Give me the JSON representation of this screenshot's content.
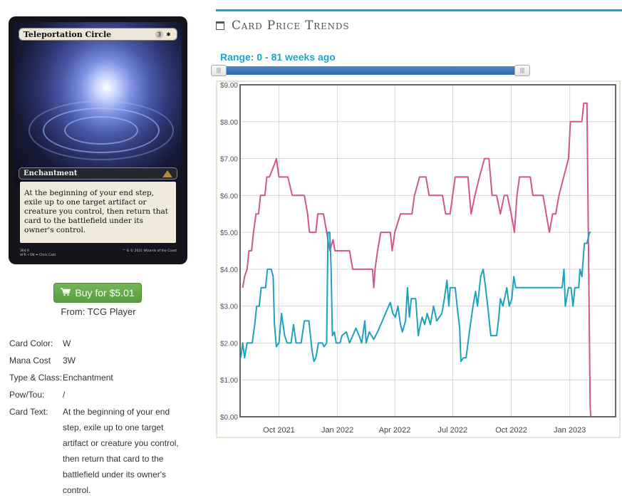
{
  "card": {
    "name": "Teleportation Circle",
    "mana_cost": "3W",
    "type_line": "Enchantment",
    "rules_text": "At the beginning of your end step, exile up to one target artifact or creature you control, then return that card to the battlefield under its owner's control.",
    "collector_left": "364 R\nAFR • EN ✒ Chris Cold",
    "footer_right": "™ & © 2021 Wizards of the Coast"
  },
  "buy": {
    "label": "Buy for $5.01",
    "from": "From: TCG Player",
    "icon": "shopping-cart-icon",
    "color": "#5fa544"
  },
  "details": [
    {
      "label": "Card Color:",
      "value": "W"
    },
    {
      "label": "Mana Cost",
      "value": "3W"
    },
    {
      "label": "Type & Class:",
      "value": "Enchantment"
    },
    {
      "label": "Pow/Tou:",
      "value": "/"
    },
    {
      "label": "Card Text:",
      "value": "At the beginning of your end step, exile up to one target artifact or creature you control, then return that card to the battlefield under its owner's control."
    }
  ],
  "section": {
    "title": "Card Price Trends",
    "icon": "calendar-icon",
    "accent": "#1aa3c4"
  },
  "range": {
    "label": "Range: 0 - 81 weeks ago",
    "min_weeks": 0,
    "max_weeks": 81
  },
  "chart_data": {
    "type": "line",
    "title": "",
    "xlabel": "",
    "ylabel": "",
    "ylim": [
      0,
      9
    ],
    "xlim": [
      "2021-08-01",
      "2023-03-14"
    ],
    "yticks": [
      "$0.00",
      "$1.00",
      "$2.00",
      "$3.00",
      "$4.00",
      "$5.00",
      "$6.00",
      "$7.00",
      "$8.00",
      "$9.00"
    ],
    "xticks": [
      {
        "label": "Oct 2021",
        "date": "2021-10-01"
      },
      {
        "label": "Jan 2022",
        "date": "2022-01-01"
      },
      {
        "label": "Apr 2022",
        "date": "2022-04-01"
      },
      {
        "label": "Jul 2022",
        "date": "2022-07-01"
      },
      {
        "label": "Oct 2022",
        "date": "2022-10-01"
      },
      {
        "label": "Jan 2023",
        "date": "2023-01-01"
      }
    ],
    "grid": true,
    "series": [
      {
        "color": "#d2558e",
        "points": [
          [
            "2021-08-05",
            3.5
          ],
          [
            "2021-08-08",
            3.8
          ],
          [
            "2021-08-12",
            4.0
          ],
          [
            "2021-08-15",
            4.5
          ],
          [
            "2021-08-19",
            4.5
          ],
          [
            "2021-08-22",
            5.0
          ],
          [
            "2021-08-26",
            5.5
          ],
          [
            "2021-08-30",
            5.5
          ],
          [
            "2021-09-02",
            6.0
          ],
          [
            "2021-09-09",
            6.0
          ],
          [
            "2021-09-12",
            6.5
          ],
          [
            "2021-09-16",
            6.5
          ],
          [
            "2021-09-23",
            6.8
          ],
          [
            "2021-09-27",
            7.0
          ],
          [
            "2021-10-01",
            6.5
          ],
          [
            "2021-10-15",
            6.5
          ],
          [
            "2021-10-22",
            6.0
          ],
          [
            "2021-11-10",
            6.0
          ],
          [
            "2021-11-15",
            5.5
          ],
          [
            "2021-11-18",
            5.0
          ],
          [
            "2021-11-28",
            5.0
          ],
          [
            "2021-12-01",
            5.5
          ],
          [
            "2021-12-10",
            5.5
          ],
          [
            "2021-12-15",
            5.0
          ],
          [
            "2021-12-20",
            4.5
          ],
          [
            "2021-12-25",
            4.8
          ],
          [
            "2021-12-28",
            4.5
          ],
          [
            "2022-01-20",
            4.5
          ],
          [
            "2022-01-25",
            4.0
          ],
          [
            "2022-02-25",
            4.0
          ],
          [
            "2022-02-27",
            3.5
          ],
          [
            "2022-03-01",
            4.0
          ],
          [
            "2022-03-05",
            4.5
          ],
          [
            "2022-03-10",
            5.0
          ],
          [
            "2022-03-25",
            5.0
          ],
          [
            "2022-03-28",
            4.5
          ],
          [
            "2022-04-01",
            5.0
          ],
          [
            "2022-04-10",
            5.5
          ],
          [
            "2022-04-28",
            5.5
          ],
          [
            "2022-05-02",
            6.0
          ],
          [
            "2022-05-10",
            6.5
          ],
          [
            "2022-05-20",
            6.5
          ],
          [
            "2022-05-25",
            6.0
          ],
          [
            "2022-06-05",
            6.0
          ],
          [
            "2022-06-15",
            6.0
          ],
          [
            "2022-06-20",
            5.5
          ],
          [
            "2022-06-27",
            5.5
          ],
          [
            "2022-07-01",
            6.0
          ],
          [
            "2022-07-05",
            6.5
          ],
          [
            "2022-07-25",
            6.5
          ],
          [
            "2022-07-30",
            5.5
          ],
          [
            "2022-08-05",
            6.0
          ],
          [
            "2022-08-12",
            6.5
          ],
          [
            "2022-08-20",
            7.0
          ],
          [
            "2022-08-27",
            7.0
          ],
          [
            "2022-09-01",
            6.0
          ],
          [
            "2022-09-08",
            6.0
          ],
          [
            "2022-09-14",
            5.5
          ],
          [
            "2022-09-20",
            6.0
          ],
          [
            "2022-09-25",
            6.0
          ],
          [
            "2022-10-01",
            5.5
          ],
          [
            "2022-10-06",
            5.0
          ],
          [
            "2022-10-10",
            6.0
          ],
          [
            "2022-10-14",
            6.5
          ],
          [
            "2022-10-31",
            6.5
          ],
          [
            "2022-11-04",
            6.0
          ],
          [
            "2022-11-20",
            6.0
          ],
          [
            "2022-11-25",
            5.5
          ],
          [
            "2022-11-30",
            5.0
          ],
          [
            "2022-12-05",
            5.5
          ],
          [
            "2022-12-10",
            5.5
          ],
          [
            "2022-12-15",
            6.0
          ],
          [
            "2022-12-30",
            7.0
          ],
          [
            "2023-01-02",
            8.0
          ],
          [
            "2023-01-20",
            8.0
          ],
          [
            "2023-01-23",
            8.5
          ],
          [
            "2023-01-28",
            8.5
          ],
          [
            "2023-02-02",
            0.3
          ],
          [
            "2023-02-03",
            0.0
          ]
        ]
      },
      {
        "color": "#1ea0bf",
        "points": [
          [
            "2021-08-02",
            1.6
          ],
          [
            "2021-08-05",
            2.0
          ],
          [
            "2021-08-08",
            1.6
          ],
          [
            "2021-08-12",
            2.0
          ],
          [
            "2021-08-20",
            2.0
          ],
          [
            "2021-08-24",
            2.5
          ],
          [
            "2021-08-27",
            3.0
          ],
          [
            "2021-08-31",
            3.0
          ],
          [
            "2021-09-03",
            3.5
          ],
          [
            "2021-09-10",
            3.5
          ],
          [
            "2021-09-13",
            4.0
          ],
          [
            "2021-09-19",
            4.0
          ],
          [
            "2021-09-22",
            3.8
          ],
          [
            "2021-09-24",
            2.5
          ],
          [
            "2021-09-27",
            1.9
          ],
          [
            "2021-10-01",
            2.0
          ],
          [
            "2021-10-05",
            2.8
          ],
          [
            "2021-10-10",
            2.2
          ],
          [
            "2021-10-14",
            2.0
          ],
          [
            "2021-10-20",
            2.0
          ],
          [
            "2021-10-24",
            2.5
          ],
          [
            "2021-10-28",
            2.0
          ],
          [
            "2021-11-05",
            2.0
          ],
          [
            "2021-11-10",
            2.6
          ],
          [
            "2021-11-17",
            2.6
          ],
          [
            "2021-11-22",
            1.8
          ],
          [
            "2021-11-25",
            1.5
          ],
          [
            "2021-11-28",
            1.6
          ],
          [
            "2021-12-02",
            2.0
          ],
          [
            "2021-12-08",
            2.0
          ],
          [
            "2021-12-11",
            1.9
          ],
          [
            "2021-12-15",
            2.0
          ],
          [
            "2021-12-17",
            5.0
          ],
          [
            "2021-12-20",
            5.0
          ],
          [
            "2021-12-22",
            4.0
          ],
          [
            "2021-12-24",
            2.2
          ],
          [
            "2021-12-27",
            2.3
          ],
          [
            "2021-12-30",
            2.0
          ],
          [
            "2022-01-05",
            2.0
          ],
          [
            "2022-01-08",
            2.2
          ],
          [
            "2022-01-15",
            2.3
          ],
          [
            "2022-01-20",
            2.0
          ],
          [
            "2022-01-25",
            2.2
          ],
          [
            "2022-01-30",
            2.4
          ],
          [
            "2022-02-04",
            2.2
          ],
          [
            "2022-02-08",
            2.0
          ],
          [
            "2022-02-13",
            2.6
          ],
          [
            "2022-02-15",
            2.0
          ],
          [
            "2022-02-20",
            2.3
          ],
          [
            "2022-02-27",
            2.1
          ],
          [
            "2022-03-05",
            2.3
          ],
          [
            "2022-03-10",
            2.5
          ],
          [
            "2022-03-15",
            2.7
          ],
          [
            "2022-03-20",
            2.9
          ],
          [
            "2022-03-25",
            3.1
          ],
          [
            "2022-03-29",
            2.8
          ],
          [
            "2022-04-02",
            2.7
          ],
          [
            "2022-04-06",
            3.0
          ],
          [
            "2022-04-10",
            2.5
          ],
          [
            "2022-04-13",
            2.3
          ],
          [
            "2022-04-18",
            2.6
          ],
          [
            "2022-04-21",
            3.5
          ],
          [
            "2022-04-24",
            2.7
          ],
          [
            "2022-04-27",
            3.2
          ],
          [
            "2022-05-04",
            3.2
          ],
          [
            "2022-05-08",
            2.2
          ],
          [
            "2022-05-10",
            2.4
          ],
          [
            "2022-05-14",
            2.7
          ],
          [
            "2022-05-18",
            2.5
          ],
          [
            "2022-05-22",
            2.8
          ],
          [
            "2022-05-27",
            2.5
          ],
          [
            "2022-06-01",
            3.0
          ],
          [
            "2022-06-06",
            2.6
          ],
          [
            "2022-06-14",
            2.8
          ],
          [
            "2022-06-18",
            3.2
          ],
          [
            "2022-06-22",
            3.7
          ],
          [
            "2022-06-25",
            3.0
          ],
          [
            "2022-06-27",
            3.5
          ],
          [
            "2022-07-05",
            3.5
          ],
          [
            "2022-07-08",
            3.0
          ],
          [
            "2022-07-12",
            2.4
          ],
          [
            "2022-07-14",
            1.5
          ],
          [
            "2022-07-18",
            1.6
          ],
          [
            "2022-07-22",
            1.6
          ],
          [
            "2022-07-25",
            2.0
          ],
          [
            "2022-07-28",
            2.4
          ],
          [
            "2022-08-02",
            3.0
          ],
          [
            "2022-08-06",
            3.4
          ],
          [
            "2022-08-09",
            3.0
          ],
          [
            "2022-08-14",
            3.8
          ],
          [
            "2022-08-18",
            4.0
          ],
          [
            "2022-08-21",
            3.6
          ],
          [
            "2022-08-25",
            3.0
          ],
          [
            "2022-08-30",
            2.2
          ],
          [
            "2022-09-08",
            2.2
          ],
          [
            "2022-09-11",
            2.6
          ],
          [
            "2022-09-14",
            3.2
          ],
          [
            "2022-09-18",
            3.0
          ],
          [
            "2022-09-24",
            3.5
          ],
          [
            "2022-09-28",
            3.0
          ],
          [
            "2022-10-02",
            3.2
          ],
          [
            "2022-10-05",
            3.8
          ],
          [
            "2022-10-08",
            3.5
          ],
          [
            "2022-10-20",
            3.5
          ],
          [
            "2022-11-30",
            3.5
          ],
          [
            "2022-12-20",
            3.5
          ],
          [
            "2022-12-23",
            4.0
          ],
          [
            "2022-12-25",
            3.0
          ],
          [
            "2022-12-30",
            3.5
          ],
          [
            "2023-01-03",
            3.5
          ],
          [
            "2023-01-06",
            3.0
          ],
          [
            "2023-01-09",
            3.5
          ],
          [
            "2023-01-15",
            3.5
          ],
          [
            "2023-01-17",
            4.0
          ],
          [
            "2023-01-20",
            3.8
          ],
          [
            "2023-01-24",
            4.7
          ],
          [
            "2023-01-28",
            4.7
          ],
          [
            "2023-02-01",
            5.0
          ],
          [
            "2023-02-03",
            5.0
          ]
        ]
      }
    ]
  }
}
